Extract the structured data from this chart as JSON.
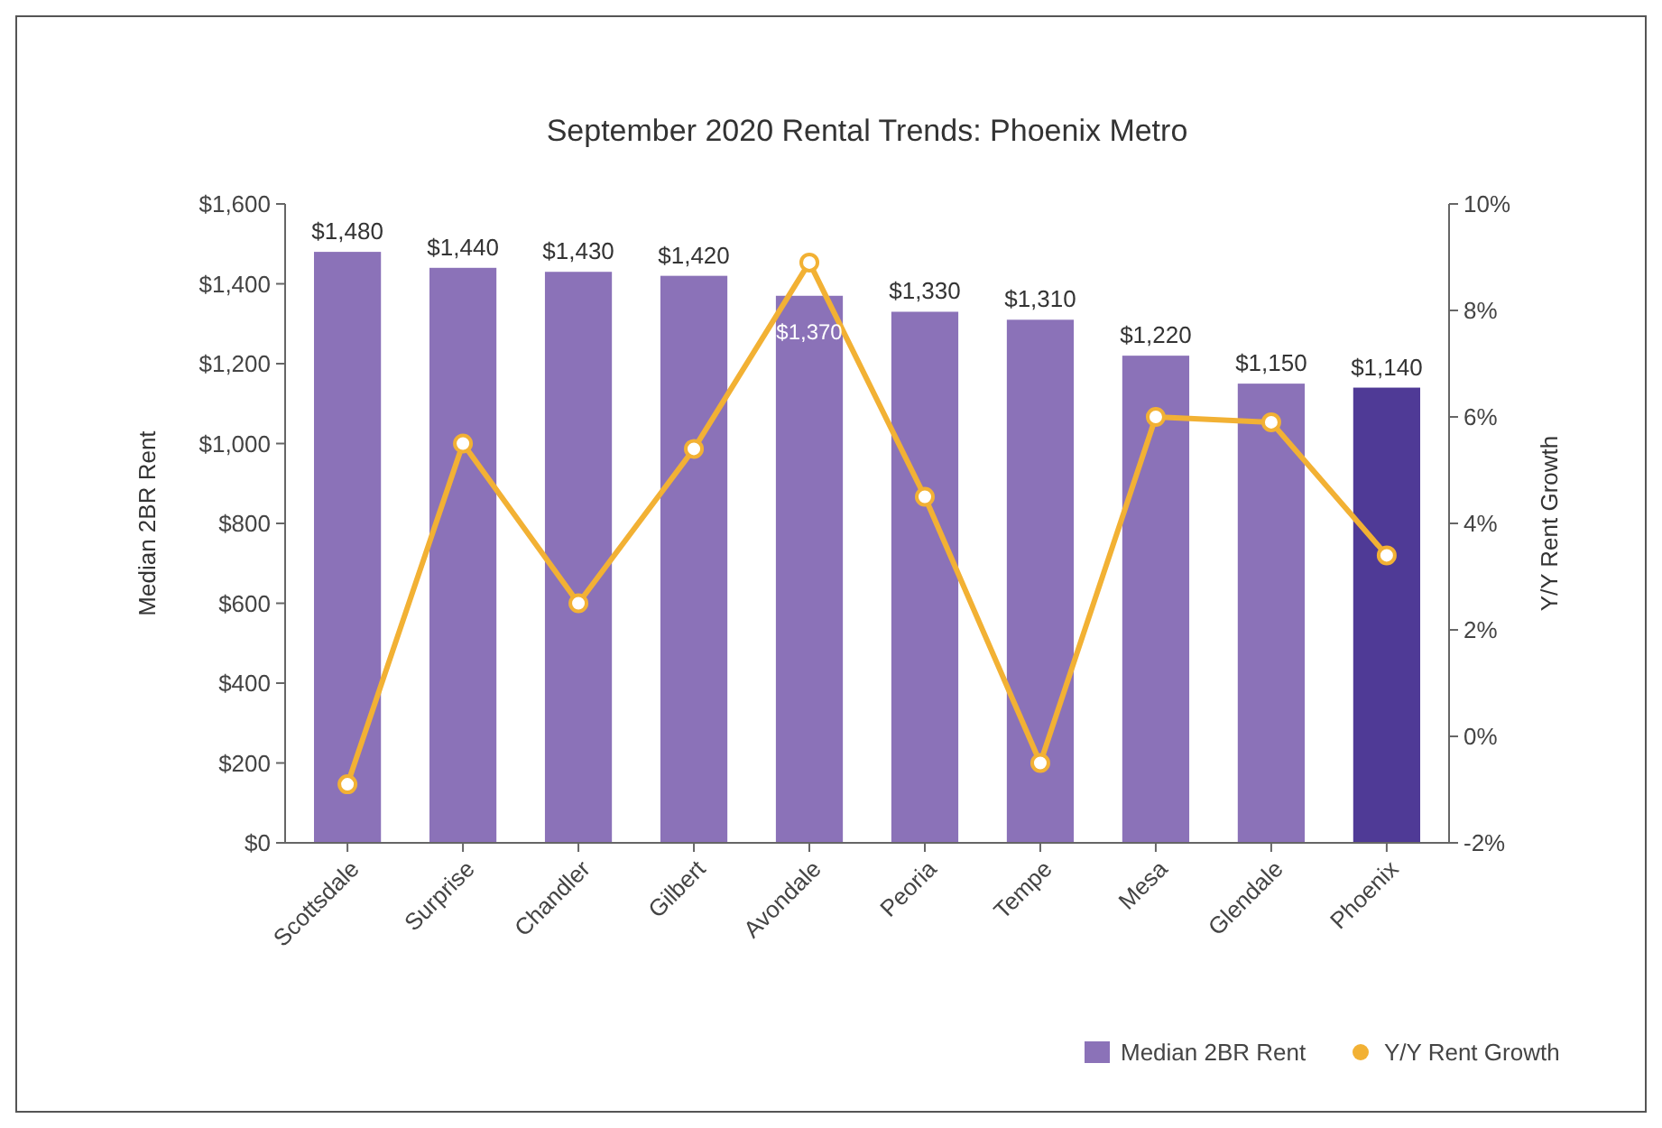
{
  "chart_data": {
    "type": "bar",
    "title": "September 2020 Rental Trends: Phoenix Metro",
    "ylabel": "Median 2BR Rent",
    "y2label": "Y/Y Rent Growth",
    "categories": [
      "Scottsdale",
      "Surprise",
      "Chandler",
      "Gilbert",
      "Avondale",
      "Peoria",
      "Tempe",
      "Mesa",
      "Glendale",
      "Phoenix"
    ],
    "series": [
      {
        "name": "Median 2BR Rent",
        "color": "#8b72b8",
        "colors": [
          "#8b72b8",
          "#8b72b8",
          "#8b72b8",
          "#8b72b8",
          "#8b72b8",
          "#8b72b8",
          "#8b72b8",
          "#8b72b8",
          "#8b72b8",
          "#4f3a96"
        ],
        "values": [
          1480,
          1440,
          1430,
          1420,
          1370,
          1330,
          1310,
          1220,
          1150,
          1140
        ],
        "value_labels": [
          "$1,480",
          "$1,440",
          "$1,430",
          "$1,420",
          "$1,370",
          "$1,330",
          "$1,310",
          "$1,220",
          "$1,150",
          "$1,140"
        ]
      },
      {
        "name": "Y/Y Rent Growth",
        "type": "line",
        "axis": "y2",
        "color": "#f2b134",
        "marker": "circle",
        "values": [
          -0.9,
          5.5,
          2.5,
          5.4,
          8.9,
          4.5,
          -0.5,
          6.0,
          5.9,
          3.4
        ]
      }
    ],
    "ylim": [
      0,
      1600
    ],
    "yticks": [
      {
        "value": 0,
        "label": "$0"
      },
      {
        "value": 200,
        "label": "$200"
      },
      {
        "value": 400,
        "label": "$400"
      },
      {
        "value": 600,
        "label": "$600"
      },
      {
        "value": 800,
        "label": "$800"
      },
      {
        "value": 1000,
        "label": "$1,000"
      },
      {
        "value": 1200,
        "label": "$1,200"
      },
      {
        "value": 1400,
        "label": "$1,400"
      },
      {
        "value": 1600,
        "label": "$1,600"
      }
    ],
    "y2lim": [
      -2,
      10
    ],
    "y2ticks": [
      {
        "value": -2,
        "label": "-2%"
      },
      {
        "value": 0,
        "label": "0%"
      },
      {
        "value": 2,
        "label": "2%"
      },
      {
        "value": 4,
        "label": "4%"
      },
      {
        "value": 6,
        "label": "6%"
      },
      {
        "value": 8,
        "label": "8%"
      },
      {
        "value": 10,
        "label": "10%"
      }
    ],
    "legend": "bottom right"
  }
}
